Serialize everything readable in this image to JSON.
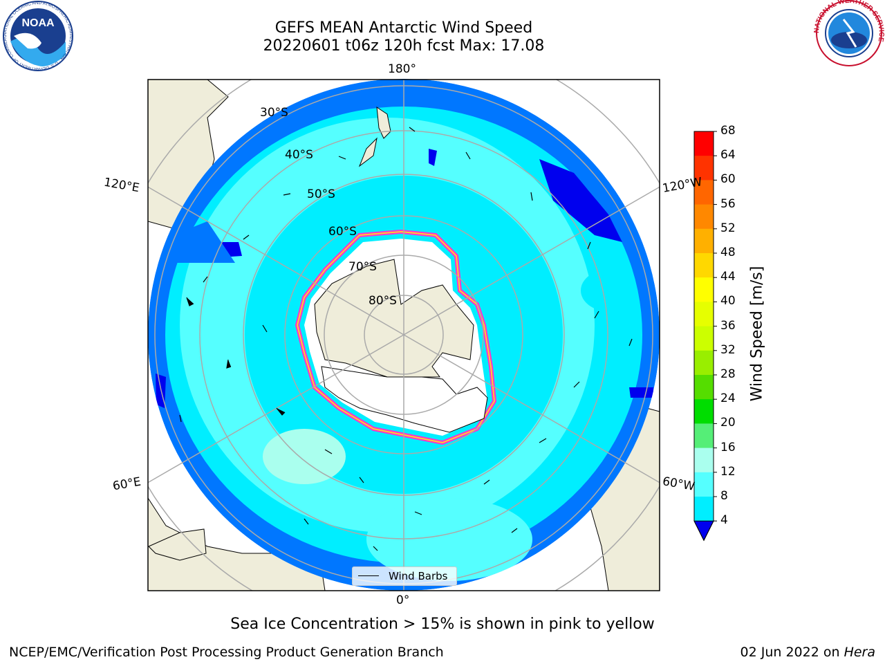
{
  "title_line1": "GEFS MEAN Antarctic Wind Speed",
  "title_line2": "20220601 t06z 120h fcst   Max: 17.08",
  "map": {
    "longitude_labels": [
      "180°",
      "120°E",
      "120°W",
      "60°E",
      "60°W",
      "0°"
    ],
    "latitude_labels": [
      "30°S",
      "40°S",
      "50°S",
      "60°S",
      "70°S",
      "80°S"
    ],
    "legend_label": "Wind Barbs"
  },
  "colorbar": {
    "title": "Wind Speed [m/s]",
    "ticks": [
      "68",
      "64",
      "60",
      "56",
      "52",
      "48",
      "44",
      "40",
      "36",
      "32",
      "28",
      "24",
      "20",
      "16",
      "12",
      "8",
      "4"
    ],
    "colors": [
      "#ff0000",
      "#ff3300",
      "#ff6600",
      "#ff8800",
      "#ffb000",
      "#ffd800",
      "#ffff00",
      "#e6ff00",
      "#ccff00",
      "#99ee00",
      "#55dd00",
      "#00dd00",
      "#55ee77",
      "#aaffee",
      "#55ffff",
      "#00eeff",
      "#0077ff"
    ],
    "extend_min_color": "#0000ee"
  },
  "note": "Sea Ice Concentration > 15% is shown in pink to yellow",
  "footer_left": "NCEP/EMC/Verification Post Processing Product Generation Branch",
  "footer_date": "02 Jun 2022 on ",
  "footer_machine": "Hera",
  "logos": {
    "noaa": "NOAA",
    "noaa_ring": "NATIONAL OCEANIC AND ATMOSPHERIC ADMINISTRATION · U.S. DEPARTMENT OF COMMERCE",
    "nws_ring": "NATIONAL WEATHER SERVICE"
  }
}
